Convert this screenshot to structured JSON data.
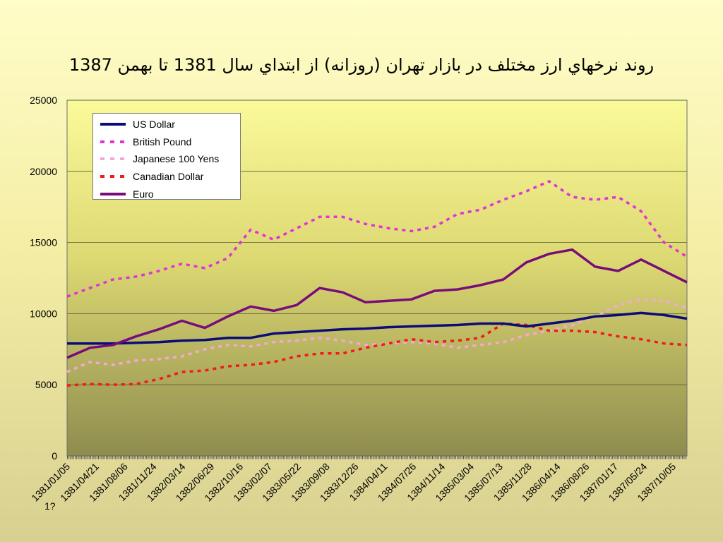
{
  "title": "روند نرخهاي ارز مختلف در بازار تهران (روزانه) از ابتداي سال 1381 تا بهمن 1387",
  "colors": {
    "US Dollar": "#0b0b7a",
    "British Pound": "#e034d6",
    "Japanese 100 Yens": "#f2a8d8",
    "Canadian Dollar": "#f21a1a",
    "Euro": "#7a0c7a"
  },
  "chart_data": {
    "type": "line",
    "title": "روند نرخهاي ارز مختلف در بازار تهران (روزانه) از ابتداي سال 1381 تا بهمن 1387",
    "xlabel": "",
    "ylabel": "",
    "ylim": [
      0,
      25000
    ],
    "y_ticks": [
      "0",
      "5000",
      "10000",
      "15000",
      "20000",
      "25000"
    ],
    "grid": "horizontal",
    "legend_position": "top-left",
    "x_tick_labels": [
      "1381/01/05",
      "1381/04/21",
      "1381/08/06",
      "1381/11/24",
      "1382/03/14",
      "1382/06/29",
      "1382/10/16",
      "1383/02/07",
      "1383/05/22",
      "1383/09/08",
      "1383/12/26",
      "1384/04/11",
      "1384/07/26",
      "1384/11/14",
      "1385/03/04",
      "1385/07/13",
      "1385/11/28",
      "1386/04/14",
      "1386/08/26",
      "1387/01/17",
      "1387/05/24",
      "1387/10/05"
    ],
    "x_extra_label": "1?",
    "series": [
      {
        "name": "US Dollar",
        "style": "solid",
        "values": [
          7900,
          7900,
          7900,
          7950,
          8000,
          8100,
          8150,
          8300,
          8300,
          8600,
          8700,
          8800,
          8900,
          8950,
          9050,
          9100,
          9150,
          9200,
          9300,
          9300,
          9100,
          9300,
          9500,
          9800,
          9900,
          10050,
          9900,
          9650
        ]
      },
      {
        "name": "British Pound",
        "style": "dashed",
        "values": [
          11200,
          11800,
          12400,
          12600,
          13000,
          13500,
          13200,
          13900,
          15900,
          15200,
          16000,
          16800,
          16800,
          16300,
          16000,
          15800,
          16100,
          17000,
          17300,
          18000,
          18600,
          19300,
          18200,
          18000,
          18200,
          17200,
          15000,
          14000
        ]
      },
      {
        "name": "Japanese 100 Yens",
        "style": "dashed",
        "values": [
          5900,
          6600,
          6400,
          6700,
          6800,
          7000,
          7500,
          7800,
          7700,
          8000,
          8100,
          8300,
          8100,
          7800,
          7900,
          8000,
          7900,
          7600,
          7800,
          8000,
          8500,
          8800,
          9200,
          9800,
          10600,
          11000,
          10900,
          10400
        ]
      },
      {
        "name": "Canadian Dollar",
        "style": "dashed",
        "values": [
          4950,
          5050,
          5000,
          5050,
          5400,
          5900,
          6000,
          6300,
          6400,
          6600,
          7000,
          7200,
          7200,
          7600,
          7900,
          8200,
          8000,
          8100,
          8300,
          9300,
          9200,
          8800,
          8800,
          8700,
          8400,
          8200,
          7900,
          7800
        ]
      },
      {
        "name": "Euro",
        "style": "solid",
        "values": [
          6900,
          7600,
          7800,
          8400,
          8900,
          9500,
          9000,
          9800,
          10500,
          10200,
          10600,
          11800,
          11500,
          10800,
          10900,
          11000,
          11600,
          11700,
          12000,
          12400,
          13600,
          14200,
          14500,
          13300,
          13000,
          13800,
          13000,
          12200
        ]
      }
    ]
  }
}
